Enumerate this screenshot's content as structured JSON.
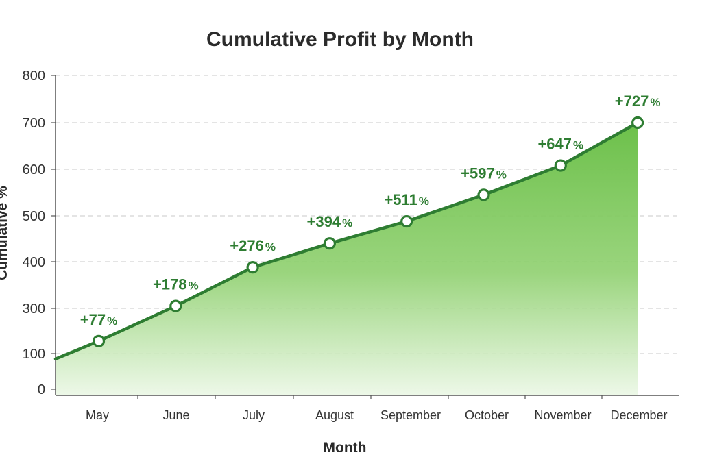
{
  "chart_data": {
    "type": "area",
    "title": "Cumulative Profit by Month",
    "xlabel": "Month",
    "ylabel": "Cumulative %",
    "categories": [
      "May",
      "June",
      "July",
      "August",
      "September",
      "October",
      "November",
      "December"
    ],
    "series": [
      {
        "values": [
          155,
          305,
          388,
          440,
          488,
          545,
          608,
          700
        ],
        "labels": [
          "+77%",
          "+178%",
          "+276%",
          "+394%",
          "+511%",
          "+597%",
          "+647%",
          "+727%"
        ],
        "start_value": 85
      }
    ],
    "yticks": [
      0,
      100,
      300,
      400,
      500,
      600,
      700,
      800
    ],
    "ylim": [
      0,
      800
    ],
    "grid": true,
    "legend": "none",
    "colors": {
      "line": "#2e7d32",
      "fill_top": "#6cc04a",
      "fill_bottom": "#eaf7e4",
      "label": "#2e7d32",
      "grid": "#c8c8c8",
      "axis": "#555555"
    }
  }
}
